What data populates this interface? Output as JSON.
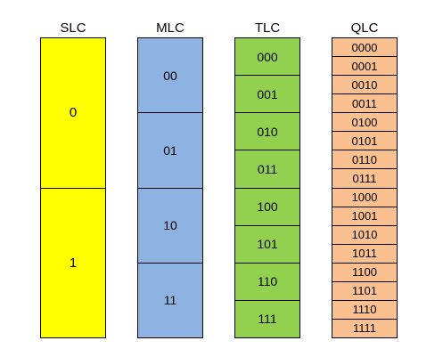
{
  "columns": [
    {
      "title": "SLC",
      "color": "#ffff00",
      "cells": [
        "0",
        "1"
      ]
    },
    {
      "title": "MLC",
      "color": "#8db3e2",
      "cells": [
        "00",
        "01",
        "10",
        "11"
      ]
    },
    {
      "title": "TLC",
      "color": "#92d050",
      "cells": [
        "000",
        "001",
        "010",
        "011",
        "100",
        "101",
        "110",
        "111"
      ]
    },
    {
      "title": "QLC",
      "color": "#fac090",
      "cells": [
        "0000",
        "0001",
        "0010",
        "0011",
        "0100",
        "0101",
        "0110",
        "0111",
        "1000",
        "1001",
        "1010",
        "1011",
        "1100",
        "1101",
        "1110",
        "1111"
      ]
    }
  ]
}
